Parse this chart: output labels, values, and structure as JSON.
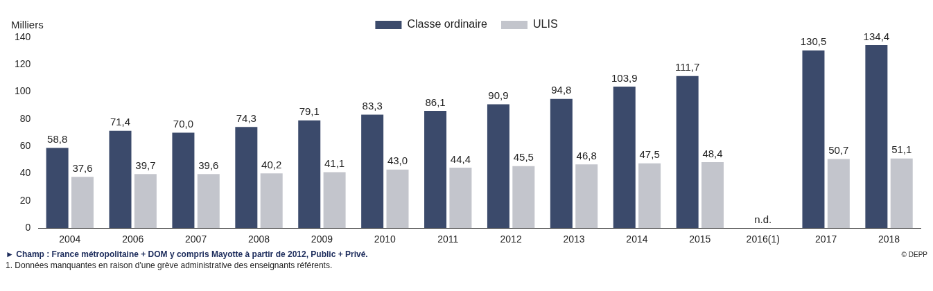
{
  "chart_data": {
    "type": "bar",
    "ylabel": "Milliers",
    "categories": [
      "2004",
      "2006",
      "2007",
      "2008",
      "2009",
      "2010",
      "2011",
      "2012",
      "2013",
      "2014",
      "2015",
      "2016(1)",
      "2017",
      "2018"
    ],
    "series": [
      {
        "name": "Classe ordinaire",
        "color": "#3b4a6b",
        "values": [
          58.8,
          71.4,
          70.0,
          74.3,
          79.1,
          83.3,
          86.1,
          90.9,
          94.8,
          103.9,
          111.7,
          null,
          130.5,
          134.4
        ],
        "value_labels": [
          "58,8",
          "71,4",
          "70,0",
          "74,3",
          "79,1",
          "83,3",
          "86,1",
          "90,9",
          "94,8",
          "103,9",
          "111,7",
          null,
          "130,5",
          "134,4"
        ]
      },
      {
        "name": "ULIS",
        "color": "#c3c5cc",
        "values": [
          37.6,
          39.7,
          39.6,
          40.2,
          41.1,
          43.0,
          44.4,
          45.5,
          46.8,
          47.5,
          48.4,
          null,
          50.7,
          51.1
        ],
        "value_labels": [
          "37,6",
          "39,7",
          "39,6",
          "40,2",
          "41,1",
          "43,0",
          "44,4",
          "45,5",
          "46,8",
          "47,5",
          "48,4",
          null,
          "50,7",
          "51,1"
        ]
      }
    ],
    "ylim": [
      0,
      140
    ],
    "yticks": [
      0,
      20,
      40,
      60,
      80,
      100,
      120,
      140
    ],
    "grid": false,
    "legend": "top",
    "annotations": [
      "n.d.",
      "► Champ : France métropolitaine + DOM y compris Mayotte à partir de 2012, Public + Privé.",
      "1. Données manquantes en raison d'une grève administrative des enseignants référents.",
      "© DEPP"
    ]
  }
}
